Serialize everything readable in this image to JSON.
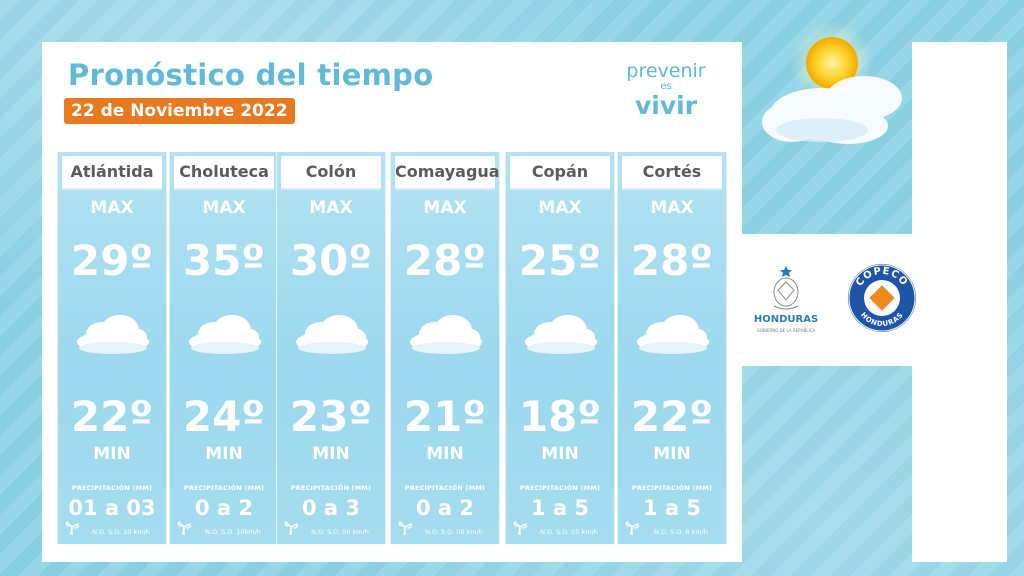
{
  "header": {
    "title": "Pronóstico del tiempo",
    "date": "22 de Noviembre 2022"
  },
  "brand": {
    "line1": "prevenir",
    "line2": "es",
    "line3": "vivir"
  },
  "labels": {
    "max": "MAX",
    "min": "MIN",
    "precipitation": "PRECIPITACIÓN (MM)"
  },
  "forecasts": [
    {
      "department": "Atlántida",
      "max": "29º",
      "min": "22º",
      "precipitation": "01 a 03",
      "wind": "N.O. S.O. 10 km/h"
    },
    {
      "department": "Choluteca",
      "max": "35º",
      "min": "24º",
      "precipitation": "0 a 2",
      "wind": "N.O. S.O. 10km/h"
    },
    {
      "department": "Colón",
      "max": "30º",
      "min": "23º",
      "precipitation": "0 a 3",
      "wind": "N.O. S.O. 08 km/h"
    },
    {
      "department": "Comayagua",
      "max": "28º",
      "min": "21º",
      "precipitation": "0 a 2",
      "wind": "N.O. S.O. 08 km/h"
    },
    {
      "department": "Copán",
      "max": "25º",
      "min": "18º",
      "precipitation": "1 a 5",
      "wind": "N.O. S.O. 05 km/h"
    },
    {
      "department": "Cortés",
      "max": "28º",
      "min": "22º",
      "precipitation": "1 a 5",
      "wind": "N.O. S.O. 8 km/h"
    }
  ],
  "logos": {
    "honduras_name": "HONDURAS",
    "honduras_sub": "GOBIERNO DE LA REPÚBLICA",
    "copeco_top": "COPECO",
    "copeco_bottom": "HONDURAS"
  },
  "colors": {
    "title": "#5fb9d8",
    "date_badge": "#e8791f",
    "card": "#a6dcef",
    "background": "#8fd3e6"
  },
  "icons": [
    "cloud-icon",
    "wind-icon",
    "sun-cloud-icon",
    "honduras-seal-icon",
    "copeco-logo-icon"
  ]
}
